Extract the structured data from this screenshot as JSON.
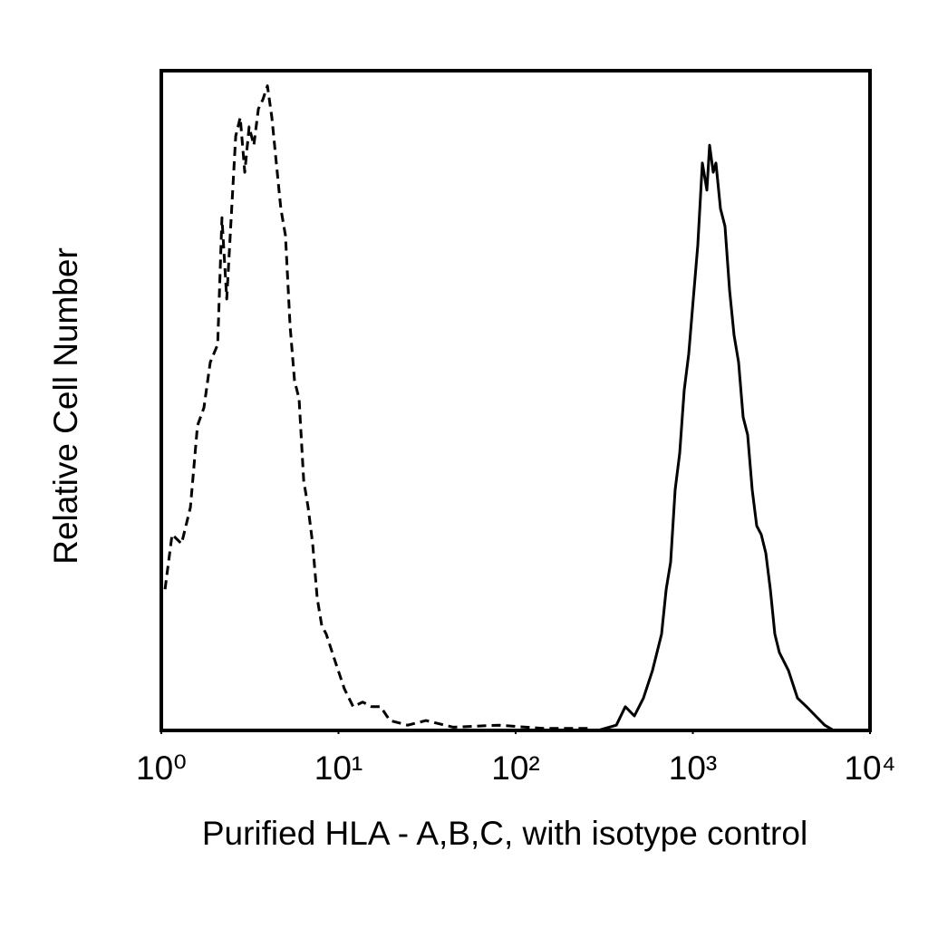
{
  "chart_data": {
    "type": "line",
    "xlabel": "Purified HLA - A,B,C, with isotype control",
    "ylabel": "Relative Cell Number",
    "xscale": "log",
    "xlim": [
      1,
      10000
    ],
    "xticks": [
      {
        "value": 1,
        "label": "10⁰"
      },
      {
        "value": 10,
        "label": "10¹"
      },
      {
        "value": 100,
        "label": "10²"
      },
      {
        "value": 1000,
        "label": "10³"
      },
      {
        "value": 10000,
        "label": "10⁴"
      }
    ],
    "ylim": [
      0,
      100
    ],
    "series": [
      {
        "color": "#000000",
        "line_style": "dashed",
        "x": [
          1.05,
          1.15,
          1.3,
          1.46,
          1.6,
          1.74,
          1.89,
          2.08,
          2.2,
          2.34,
          2.48,
          2.63,
          2.79,
          2.96,
          3.13,
          3.33,
          3.53,
          3.74,
          3.97,
          4.21,
          4.46,
          4.73,
          5.02,
          5.33,
          5.65,
          5.99,
          6.36,
          6.74,
          7.15,
          7.58,
          8.04,
          8.53,
          9.6,
          10.8,
          12.1,
          13.7,
          15.4,
          17.3,
          19.5,
          24.6,
          31.2,
          44.4,
          80,
          144,
          260
        ],
        "values": [
          21.4,
          29.7,
          28.3,
          33.8,
          46.2,
          48.9,
          55.8,
          58.5,
          77.7,
          65.4,
          77.7,
          90.1,
          92.9,
          84.6,
          91.5,
          88.7,
          94.2,
          95.6,
          97.7,
          92.9,
          86.0,
          79.1,
          75.0,
          61.3,
          53.0,
          50.3,
          37.9,
          33.8,
          28.3,
          20.1,
          15.9,
          14.6,
          10.4,
          6.3,
          3.6,
          4.3,
          3.6,
          3.6,
          1.5,
          0.8,
          1.5,
          0.5,
          0.8,
          0.3,
          0.3
        ]
      },
      {
        "color": "#000000",
        "line_style": "solid",
        "x": [
          292,
          370,
          416,
          468,
          526,
          592,
          666,
          707,
          749,
          795,
          843,
          894,
          948,
          1006,
          1067,
          1132,
          1200,
          1243,
          1304,
          1351,
          1432,
          1519,
          1612,
          1709,
          1813,
          1923,
          2039,
          2163,
          2294,
          2433,
          2581,
          2737,
          2904,
          3080,
          3464,
          3897,
          4384,
          4933,
          5549,
          6243
        ],
        "values": [
          0,
          0.8,
          3.6,
          2.2,
          4.9,
          9.1,
          14.6,
          21.4,
          25.5,
          36.5,
          42.0,
          51.6,
          57.1,
          65.4,
          73.6,
          86.0,
          81.9,
          88.7,
          84.6,
          86.0,
          79.1,
          76.4,
          66.8,
          59.9,
          55.8,
          47.5,
          44.8,
          36.5,
          31.0,
          29.7,
          26.9,
          21.4,
          14.6,
          11.8,
          9.1,
          4.9,
          3.6,
          2.2,
          0.8,
          0
        ]
      }
    ]
  }
}
